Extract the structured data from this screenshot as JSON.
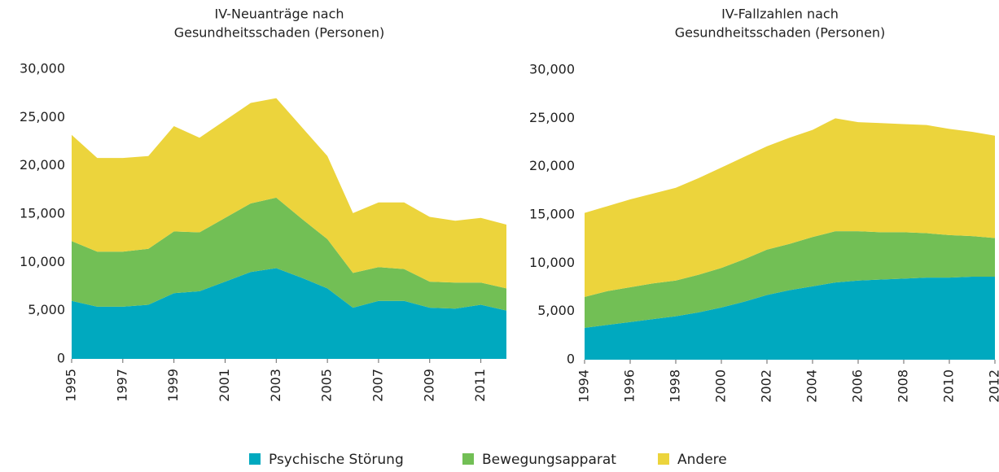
{
  "chart_data": [
    {
      "type": "stacked_area",
      "title": [
        "IV-Neuanträge nach",
        "Gesundheitsschaden (Personen)"
      ],
      "x": [
        1995,
        1996,
        1997,
        1998,
        1999,
        2000,
        2001,
        2002,
        2003,
        2004,
        2005,
        2006,
        2007,
        2008,
        2009,
        2010,
        2011,
        2012
      ],
      "xlim": [
        1995,
        2012
      ],
      "xticks": [
        1995,
        1997,
        1999,
        2001,
        2003,
        2005,
        2007,
        2009,
        2011
      ],
      "ylim": [
        0,
        30000
      ],
      "yticks": [
        0,
        {
          "value": 5000,
          "label": "5,000"
        },
        {
          "value": 10000,
          "label": "10,000"
        },
        {
          "value": 15000,
          "label": "15,000"
        },
        {
          "value": 20000,
          "label": "20,000"
        },
        {
          "value": 25000,
          "label": "25,000"
        },
        {
          "value": 30000,
          "label": "30,000"
        }
      ],
      "series": [
        {
          "name": "Psychische Störung",
          "color": "#00a9bf",
          "values": [
            6000,
            5400,
            5400,
            5600,
            6800,
            7000,
            8000,
            9000,
            9400,
            8400,
            7300,
            5300,
            6000,
            6000,
            5300,
            5200,
            5600,
            5000
          ]
        },
        {
          "name": "Bewegungsapparat",
          "color": "#72bf55",
          "values": [
            6200,
            5700,
            5700,
            5800,
            6400,
            6100,
            6600,
            7100,
            7300,
            6100,
            5100,
            3600,
            3500,
            3300,
            2700,
            2700,
            2300,
            2300
          ]
        },
        {
          "name": "Andere",
          "color": "#ecd43c",
          "values": [
            11000,
            9700,
            9700,
            9600,
            10900,
            9800,
            10100,
            10400,
            10300,
            9500,
            8600,
            6200,
            6700,
            6900,
            6700,
            6400,
            6700,
            6600
          ]
        }
      ]
    },
    {
      "type": "stacked_area",
      "title": [
        "IV-Fallzahlen nach",
        "Gesundheitsschaden (Personen)"
      ],
      "x": [
        1994,
        1995,
        1996,
        1997,
        1998,
        1999,
        2000,
        2001,
        2002,
        2003,
        2004,
        2005,
        2006,
        2007,
        2008,
        2009,
        2010,
        2011,
        2012
      ],
      "xlim": [
        1994,
        2012
      ],
      "xticks": [
        1994,
        1996,
        1998,
        2000,
        2002,
        2004,
        2006,
        2008,
        2010,
        2012
      ],
      "ylim": [
        0,
        30000
      ],
      "yticks": [
        0,
        {
          "value": 5000,
          "label": "5,000"
        },
        {
          "value": 10000,
          "label": "10,000"
        },
        {
          "value": 15000,
          "label": "15,000"
        },
        {
          "value": 20000,
          "label": "20,000"
        },
        {
          "value": 25000,
          "label": "25,000"
        },
        {
          "value": 30000,
          "label": "30,000"
        }
      ],
      "series": [
        {
          "name": "Psychische Störung",
          "color": "#00a9bf",
          "values": [
            3300,
            3600,
            3900,
            4200,
            4500,
            4900,
            5400,
            6000,
            6700,
            7200,
            7600,
            8000,
            8200,
            8300,
            8400,
            8500,
            8500,
            8600,
            8600
          ]
        },
        {
          "name": "Bewegungsapparat",
          "color": "#72bf55",
          "values": [
            3200,
            3500,
            3600,
            3700,
            3700,
            3900,
            4100,
            4400,
            4700,
            4800,
            5100,
            5300,
            5100,
            4900,
            4800,
            4600,
            4400,
            4200,
            4000
          ]
        },
        {
          "name": "Andere",
          "color": "#ecd43c",
          "values": [
            8700,
            8800,
            9100,
            9300,
            9600,
            10000,
            10400,
            10600,
            10700,
            11000,
            11100,
            11700,
            11300,
            11300,
            11200,
            11200,
            11000,
            10800,
            10600
          ]
        }
      ]
    }
  ]
}
